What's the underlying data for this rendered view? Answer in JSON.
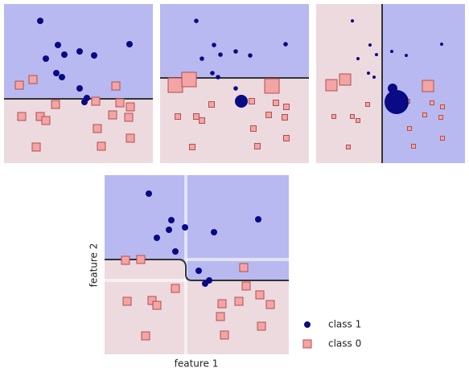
{
  "axes": {
    "x_label": "feature 1",
    "y_label": "feature 2"
  },
  "legend": [
    {
      "label": "class 1"
    },
    {
      "label": "class 0"
    }
  ]
}
